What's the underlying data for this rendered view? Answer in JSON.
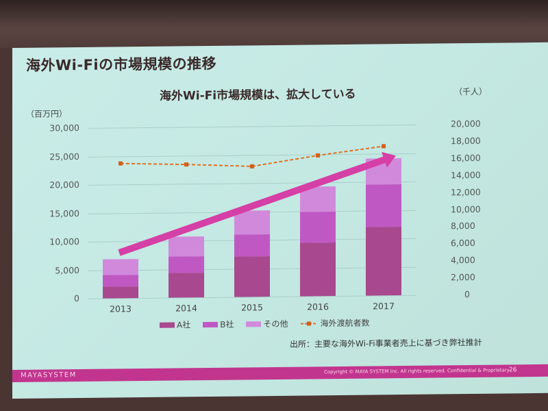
{
  "slide": {
    "title": "海外Wi-Fiの市場規模の推移",
    "footer_brand": "MAYASYSTEM",
    "footer_copyright": "Copyright © MAYA SYSTEM Inc. All rights reserved. Confidential & Proprietary",
    "page_number": "26",
    "source_note": "出所：主要な海外Wi-Fi事業者売上に基づき弊社推計",
    "colors": {
      "background": "#c6e9e4",
      "footer": "#c2358f",
      "series_a": "#a8488f",
      "series_b": "#c058c4",
      "series_other": "#d18adb",
      "line": "#e07020",
      "arrow": "#d53fa6"
    }
  },
  "chart": {
    "subtitle": "海外Wi-Fi市場規模は、拡大している",
    "left_unit": "（百万円）",
    "right_unit": "（千人）",
    "left_ticks": [
      "30,000",
      "25,000",
      "20,000",
      "15,000",
      "10,000",
      "5,000",
      "0"
    ],
    "right_ticks": [
      "20,000",
      "18,000",
      "16,000",
      "14,000",
      "12,000",
      "10,000",
      "8,000",
      "6,000",
      "4,000",
      "2,000",
      "0"
    ],
    "categories": [
      "2013",
      "2014",
      "2015",
      "2016",
      "2017"
    ],
    "legend": [
      "A社",
      "B社",
      "その他",
      "海外渡航者数"
    ]
  },
  "chart_data": {
    "type": "bar",
    "title": "海外Wi-Fi市場規模は、拡大している",
    "categories": [
      "2013",
      "2014",
      "2015",
      "2016",
      "2017"
    ],
    "stacked": true,
    "series": [
      {
        "name": "A社",
        "type": "bar",
        "axis": "left",
        "values": [
          2000,
          4300,
          7100,
          9400,
          12000
        ]
      },
      {
        "name": "B社",
        "type": "bar",
        "axis": "left",
        "values": [
          2100,
          2900,
          3900,
          5400,
          7500
        ]
      },
      {
        "name": "その他",
        "type": "bar",
        "axis": "left",
        "values": [
          2800,
          3500,
          4200,
          4500,
          4600
        ]
      },
      {
        "name": "海外渡航者数",
        "type": "line",
        "axis": "right",
        "style": "dashed",
        "values": [
          15800,
          15600,
          15300,
          16500,
          17500
        ]
      }
    ],
    "totals_left": [
      6900,
      10700,
      15200,
      19300,
      24100
    ],
    "xlabel": "",
    "ylabel": "（百万円）",
    "ylabel_right": "（千人）",
    "ylim": [
      0,
      30000
    ],
    "ylim_right": [
      0,
      20000
    ],
    "grid": true,
    "legend_position": "bottom",
    "annotations": [
      "upward arrow indicating growth from 2013 to 2017"
    ]
  }
}
